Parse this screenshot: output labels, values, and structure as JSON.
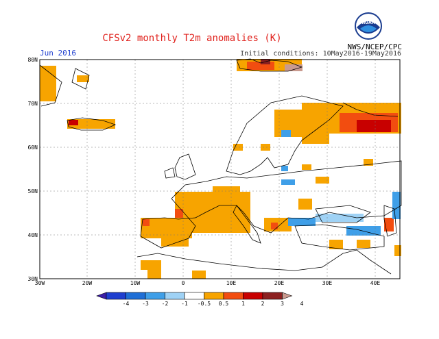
{
  "header": {
    "title": "CFSv2 monthly T2m anomalies (K)",
    "org": "NWS/NCEP/CPC",
    "month": "Jun 2016",
    "initial_conditions": "Initial conditions: 10May2016-19May2016",
    "logo_text": "NOAA"
  },
  "map": {
    "lon_labels": [
      "30W",
      "20W",
      "10W",
      "0",
      "10E",
      "20E",
      "30E",
      "40E"
    ],
    "lat_labels": [
      "80N",
      "70N",
      "60N",
      "50N",
      "40N",
      "30N"
    ]
  },
  "legend": {
    "labels": [
      "-4",
      "-3",
      "-2",
      "-1",
      "-0.5",
      "0.5",
      "1",
      "2",
      "3",
      "4"
    ],
    "colors": [
      "#3d1fa8",
      "#1f3fcf",
      "#1f6fd6",
      "#3f9fe8",
      "#9fd2f5",
      "#ffffff",
      "#f7a400",
      "#f24d10",
      "#c80000",
      "#8c2020",
      "#c99a8f"
    ]
  },
  "chart_data": {
    "type": "heatmap",
    "title": "CFSv2 monthly T2m anomalies (K)",
    "month": "Jun 2016",
    "initial_conditions": "10May2016-19May2016",
    "lon_range": [
      -30,
      45
    ],
    "lat_range": [
      30,
      80
    ],
    "color_scale": [
      -4,
      -3,
      -2,
      -1,
      -0.5,
      0.5,
      1,
      2,
      3,
      4
    ],
    "regions": [
      {
        "name": "Greenland east coast",
        "anomaly": "0.5 to 1"
      },
      {
        "name": "Iceland",
        "anomaly": "0.5 to 2"
      },
      {
        "name": "Svalbard",
        "anomaly": "1 to 4"
      },
      {
        "name": "Northern Scandinavia",
        "anomaly": "0.5 to 1"
      },
      {
        "name": "Northwest Russia / Kola",
        "anomaly": "1 to 3"
      },
      {
        "name": "France",
        "anomaly": "0.5 to 2"
      },
      {
        "name": "Iberian Peninsula",
        "anomaly": "0.5 to 1"
      },
      {
        "name": "Balkans / Greece",
        "anomaly": "0.5 to 1"
      },
      {
        "name": "Black Sea / Turkey",
        "anomaly": "-1 to -0.5"
      },
      {
        "name": "Eastern Mediterranean / Middle East",
        "anomaly": "0.5 to 1"
      },
      {
        "name": "Caucasus",
        "anomaly": "-1 to 2"
      },
      {
        "name": "North Africa",
        "anomaly": "0.5 to 1"
      }
    ]
  }
}
